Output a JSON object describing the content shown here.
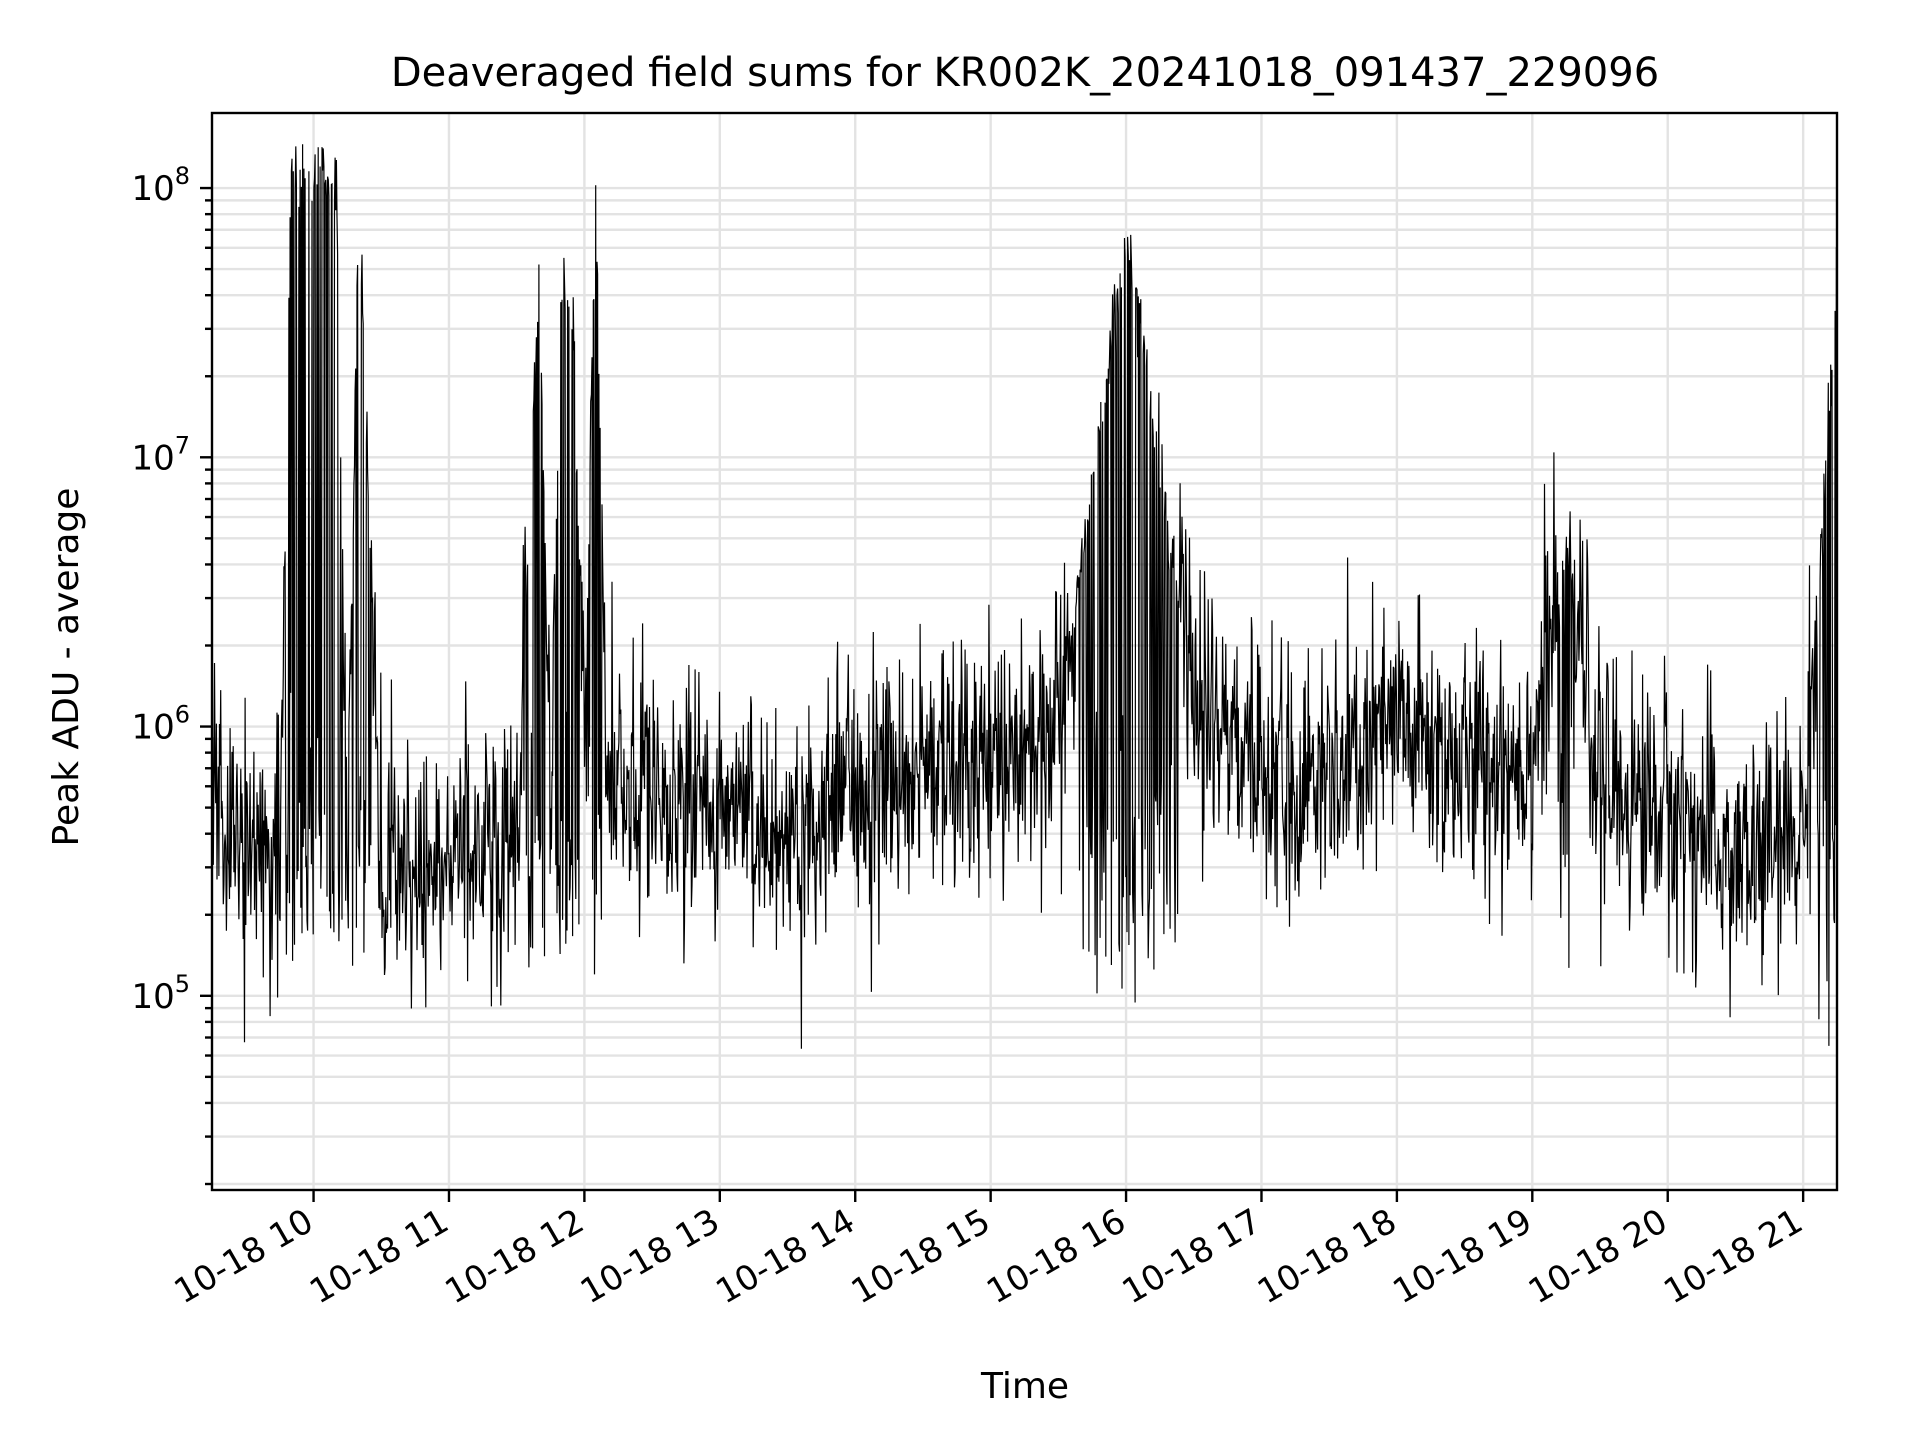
{
  "chart_data": {
    "type": "line",
    "title": "Deaveraged field sums for KR002K_20241018_091437_229096",
    "xlabel": "Time",
    "ylabel": "Peak ADU - average",
    "yscale": "log",
    "ylim": [
      19000,
      190000000
    ],
    "xlim": [
      "2024-10-18 09:15",
      "2024-10-18 21:15"
    ],
    "grid": "major and minor",
    "x_tick_labels": [
      "10-18 10",
      "10-18 11",
      "10-18 12",
      "10-18 13",
      "10-18 14",
      "10-18 15",
      "10-18 16",
      "10-18 17",
      "10-18 18",
      "10-18 19",
      "10-18 20",
      "10-18 21"
    ],
    "y_tick_labels": [
      {
        "base": "10",
        "exp": "5",
        "value": 100000
      },
      {
        "base": "10",
        "exp": "6",
        "value": 1000000
      },
      {
        "base": "10",
        "exp": "7",
        "value": 10000000
      },
      {
        "base": "10",
        "exp": "8",
        "value": 100000000
      }
    ],
    "line_color": "#000000",
    "series": [
      {
        "x": [
          "2024-10-18 09:15",
          "2024-10-18 09:30",
          "2024-10-18 09:45",
          "2024-10-18 09:50",
          "2024-10-18 09:55",
          "2024-10-18 10:00",
          "2024-10-18 10:05",
          "2024-10-18 10:10",
          "2024-10-18 10:15",
          "2024-10-18 10:20",
          "2024-10-18 10:30",
          "2024-10-18 10:45",
          "2024-10-18 11:00",
          "2024-10-18 11:15",
          "2024-10-18 11:30",
          "2024-10-18 11:40",
          "2024-10-18 11:45",
          "2024-10-18 11:50",
          "2024-10-18 11:55",
          "2024-10-18 12:00",
          "2024-10-18 12:05",
          "2024-10-18 12:10",
          "2024-10-18 12:30",
          "2024-10-18 13:00",
          "2024-10-18 13:30",
          "2024-10-18 14:00",
          "2024-10-18 14:30",
          "2024-10-18 15:00",
          "2024-10-18 15:30",
          "2024-10-18 16:00",
          "2024-10-18 16:30",
          "2024-10-18 17:00",
          "2024-10-18 17:30",
          "2024-10-18 18:00",
          "2024-10-18 18:30",
          "2024-10-18 19:00",
          "2024-10-18 19:15",
          "2024-10-18 19:30",
          "2024-10-18 20:00",
          "2024-10-18 20:30",
          "2024-10-18 21:00",
          "2024-10-18 21:15"
        ],
        "y": [
          500000,
          400000,
          300000,
          110000000,
          115000000,
          114000000,
          100000000,
          116000000,
          300000,
          100000000,
          300000,
          250000,
          350000,
          300000,
          400000,
          50000000,
          500000,
          51000000,
          30000000,
          800000,
          120000000,
          500000,
          600000,
          500000,
          400000,
          600000,
          700000,
          800000,
          900000,
          70000000,
          1200000,
          700000,
          600000,
          1000000,
          700000,
          800000,
          5000000,
          600000,
          500000,
          300000,
          400000,
          45000000
        ]
      }
    ]
  }
}
